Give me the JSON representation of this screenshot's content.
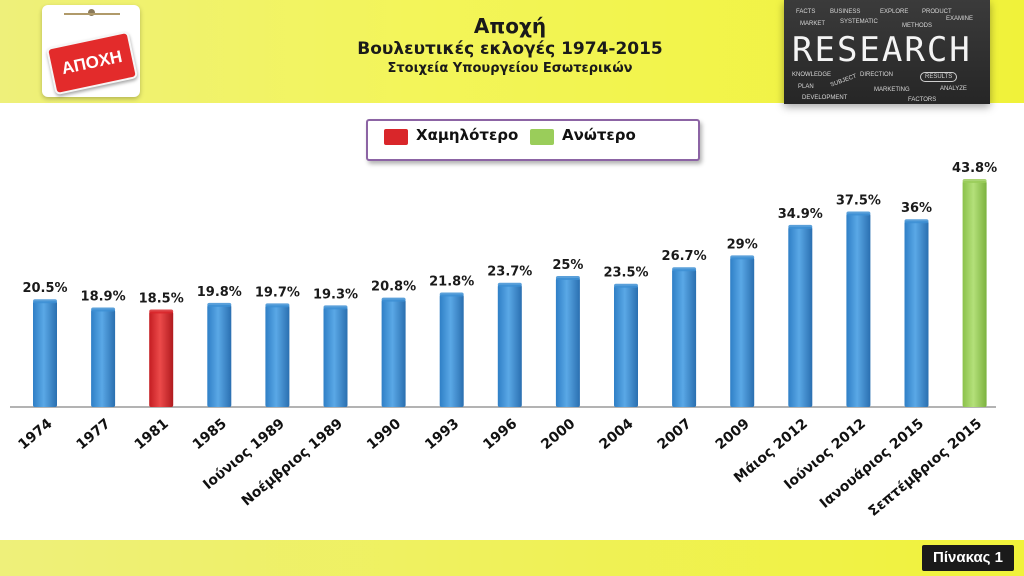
{
  "header": {
    "title": "Αποχή",
    "subtitle": "Βουλευτικές εκλογές 1974-2015",
    "source": "Στοιχεία Υπουργείου Εσωτερικών",
    "logo_text": "ΑΠΟΧΗ",
    "research_word": "RESEARCH",
    "research_words": [
      "FACTS",
      "BUSINESS",
      "EXPLORE",
      "PRODUCT",
      "MARKET",
      "SYSTEMATIC",
      "METHODS",
      "EXAMINE",
      "KNOWLEDGE",
      "SUBJECT",
      "DIRECTION",
      "RESULTS",
      "PLAN",
      "MARKETING",
      "ANALYZE",
      "DEVELOPMENT",
      "FACTORS"
    ]
  },
  "legend": {
    "low_label": "Χαμηλότερο",
    "high_label": "Ανώτερο"
  },
  "footer": {
    "page_label": "Πίνακας 1"
  },
  "colors": {
    "normal": "#3d8fd4",
    "low": "#d9262a",
    "high": "#9acd5a"
  },
  "chart_data": {
    "type": "bar",
    "categories": [
      "1974",
      "1977",
      "1981",
      "1985",
      "Ιούνιος 1989",
      "Νοέμβριος 1989",
      "1990",
      "1993",
      "1996",
      "2000",
      "2004",
      "2007",
      "2009",
      "Μάιος 2012",
      "Ιούνιος 2012",
      "Ιανουάριος 2015",
      "Σεπτέμβριος 2015"
    ],
    "values": [
      20.5,
      18.9,
      18.5,
      19.8,
      19.7,
      19.3,
      20.8,
      21.8,
      23.7,
      25,
      23.5,
      26.7,
      29,
      34.9,
      37.5,
      36,
      43.8
    ],
    "data_labels": [
      "20.5%",
      "18.9%",
      "18.5%",
      "19.8%",
      "19.7%",
      "19.3%",
      "20.8%",
      "21.8%",
      "23.7%",
      "25%",
      "23.5%",
      "26.7%",
      "29%",
      "34.9%",
      "37.5%",
      "36%",
      "43.8%"
    ],
    "highlight": [
      "normal",
      "normal",
      "low",
      "normal",
      "normal",
      "normal",
      "normal",
      "normal",
      "normal",
      "normal",
      "normal",
      "normal",
      "normal",
      "normal",
      "normal",
      "normal",
      "high"
    ],
    "ylim": [
      0,
      43.8
    ],
    "grid": false,
    "legend_position": "top-center"
  }
}
